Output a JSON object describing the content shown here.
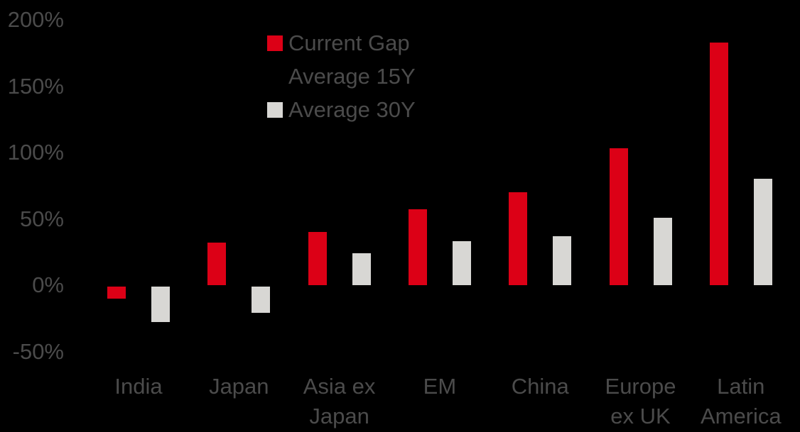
{
  "page": {
    "background": "#000000",
    "text_color": "#4B4B4B"
  },
  "legend": {
    "rows": [
      {
        "swatch_color": "#DC0016",
        "label": "Current Gap"
      },
      {
        "swatch_color": null,
        "label": "Average 15Y"
      },
      {
        "swatch_color": "#D8D7D4",
        "label": "Average 30Y"
      }
    ]
  },
  "chart_data": {
    "type": "bar",
    "title": "",
    "xlabel": "",
    "ylabel": "",
    "categories": [
      "India",
      "Japan",
      "Asia ex Japan",
      "EM",
      "China",
      "Europe ex UK",
      "Latin America"
    ],
    "series": [
      {
        "name": "Current Gap Average 15Y",
        "color": "#DC0016",
        "values": [
          -9,
          32,
          40,
          57,
          70,
          103,
          183
        ]
      },
      {
        "name": "Average 30Y",
        "color": "#D8D7D4",
        "values": [
          -27,
          -20,
          24,
          33,
          37,
          51,
          80
        ]
      }
    ],
    "yticks": [
      200,
      150,
      100,
      50,
      0,
      -50
    ],
    "ytick_suffix": "%",
    "ylim": [
      -50,
      200
    ],
    "grid": false,
    "axis_lines": false,
    "legend_position": "top-center"
  }
}
